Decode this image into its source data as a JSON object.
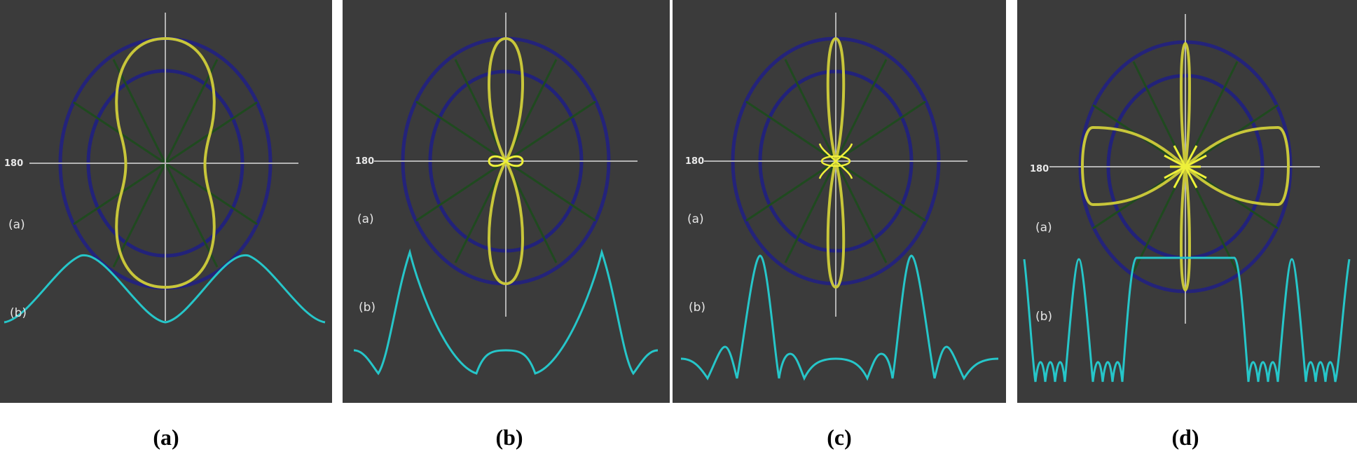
{
  "figure": {
    "axis_label": "180",
    "label_a": "(a)",
    "label_b": "(b)",
    "colors": {
      "panel_bg": "#3b3b3b",
      "outer_ring": "#24237a",
      "inner_ring": "#22227a",
      "spokes": "#1f4a1f",
      "crosshair": "#b3b3b3",
      "pattern": "#c8c63a",
      "pattern_center": "#eef03a",
      "curve": "#26c6c9"
    }
  },
  "panels": [
    {
      "id": "a",
      "caption": "(a)",
      "pattern": "single-lobe",
      "curve": "broad-hump"
    },
    {
      "id": "b",
      "caption": "(b)",
      "pattern": "two-lobe",
      "curve": "two-peak-with-sidelobes"
    },
    {
      "id": "c",
      "caption": "(c)",
      "pattern": "narrow-lobe",
      "curve": "narrow-peaks-with-sidelobes"
    },
    {
      "id": "d",
      "caption": "(d)",
      "pattern": "multi-lobe",
      "curve": "many-peaks"
    }
  ]
}
